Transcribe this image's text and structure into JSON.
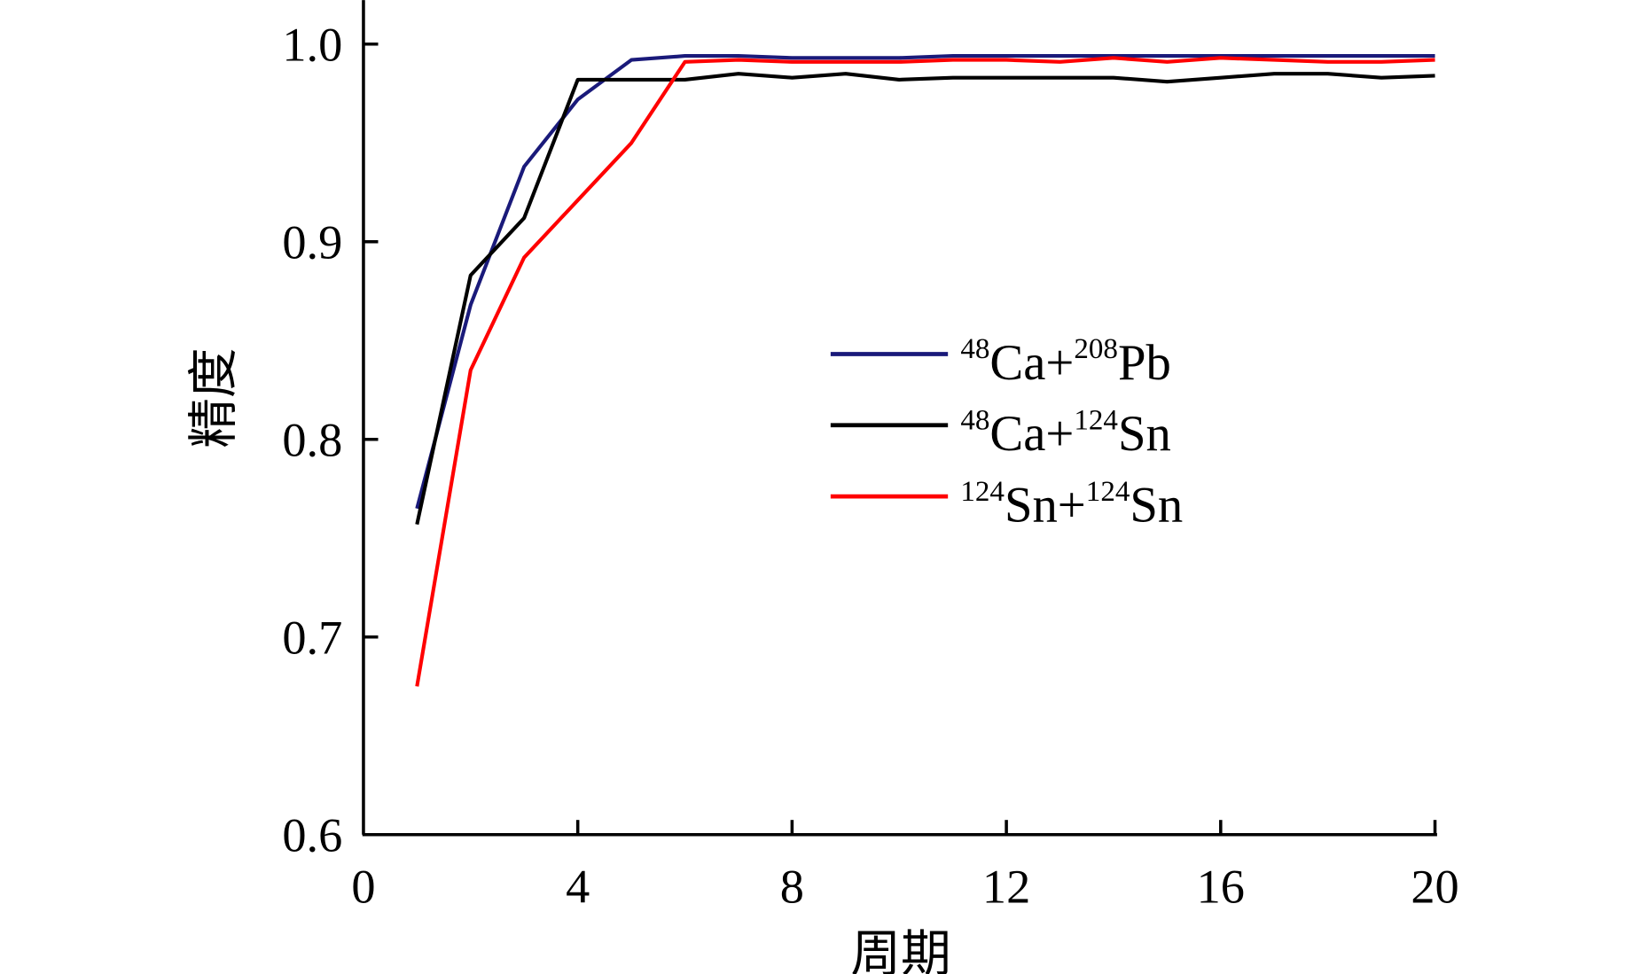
{
  "chart_data": {
    "type": "line",
    "title": "",
    "xlabel": "周期",
    "ylabel": "精度",
    "xlim": [
      0,
      20
    ],
    "ylim": [
      0.6,
      1.0
    ],
    "xticks": [
      "0",
      "4",
      "8",
      "12",
      "16",
      "20"
    ],
    "xtick_values": [
      0,
      4,
      8,
      12,
      16,
      20
    ],
    "yticks": [
      "0.6",
      "0.7",
      "0.8",
      "0.9",
      "1.0"
    ],
    "ytick_values": [
      0.6,
      0.7,
      0.8,
      0.9,
      1.0
    ],
    "grid": false,
    "legend_position": "center-right",
    "x": [
      1,
      2,
      3,
      4,
      5,
      6,
      7,
      8,
      9,
      10,
      11,
      12,
      13,
      14,
      15,
      16,
      17,
      18,
      19,
      20
    ],
    "series": [
      {
        "name": "48Ca+208Pb",
        "label_parts": {
          "sup1": "48",
          "base1": "Ca+",
          "sup2": "208",
          "base2": "Pb"
        },
        "color": "#1a1a7a",
        "values": [
          0.765,
          0.868,
          0.938,
          0.972,
          0.992,
          0.994,
          0.994,
          0.993,
          0.993,
          0.993,
          0.994,
          0.994,
          0.994,
          0.994,
          0.994,
          0.994,
          0.994,
          0.994,
          0.994,
          0.994
        ]
      },
      {
        "name": "48Ca+124Sn",
        "label_parts": {
          "sup1": "48",
          "base1": "Ca+",
          "sup2": "124",
          "base2": "Sn"
        },
        "color": "#000000",
        "values": [
          0.757,
          0.883,
          0.912,
          0.982,
          0.982,
          0.982,
          0.985,
          0.983,
          0.985,
          0.982,
          0.983,
          0.983,
          0.983,
          0.983,
          0.981,
          0.983,
          0.985,
          0.985,
          0.983,
          0.984
        ]
      },
      {
        "name": "124Sn+124Sn",
        "label_parts": {
          "sup1": "124",
          "base1": "Sn+",
          "sup2": "124",
          "base2": "Sn"
        },
        "color": "#ff0000",
        "values": [
          0.675,
          0.835,
          0.892,
          0.921,
          0.95,
          0.991,
          0.992,
          0.991,
          0.991,
          0.991,
          0.992,
          0.992,
          0.991,
          0.993,
          0.991,
          0.993,
          0.992,
          0.991,
          0.991,
          0.992
        ]
      }
    ]
  }
}
